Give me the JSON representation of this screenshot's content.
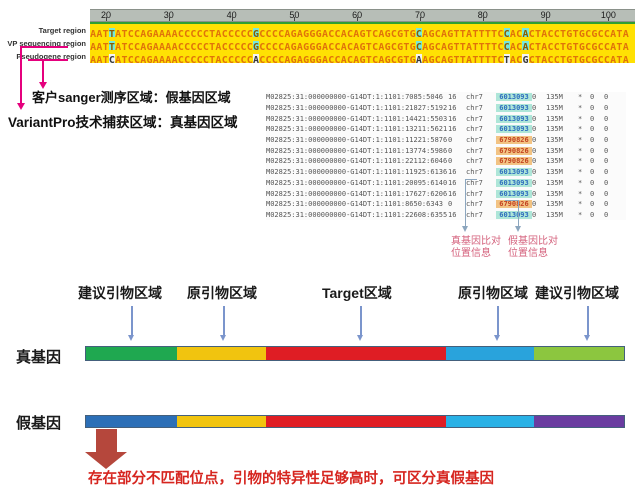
{
  "alignment_viewer": {
    "ruler_ticks": [
      20,
      30,
      40,
      50,
      60,
      70,
      80,
      90,
      100
    ],
    "rows": [
      {
        "label": "Target region",
        "kind": "reference",
        "seq": "AATTATCCAGAAAACCCCCTACCCCCGCCCCAGAGGGACCACAGTCAGCGTGCAGCAGTTATTTTCCACACTACCTGTGCGCCATA"
      },
      {
        "label": "VP sequencing region",
        "kind": "reference",
        "seq": "AATTATCCAGAAAACCCCCTACCCCCGCCCCAGAGGGACCACAGTCAGCGTGCAGCAGTTATTTTCCACACTACCTGTGCGCCATA"
      },
      {
        "label": "Pseudogene region",
        "kind": "pseudogene",
        "seq": "AATCATCCAGAAAACCCCCTACCCCCACCCCAGAGGGACCACAGTCAGCGTGAAGCAGTTATTTTCTACGCTACCTGTGCGCCATA"
      }
    ],
    "mismatch_indices": [
      3,
      26,
      52,
      66,
      69
    ],
    "colors": {
      "seq_bg": "#ffe103",
      "seq_text": "#e0730a",
      "highlight_bg": "#76e8dc",
      "mismatch_bg": "#f4f4f4",
      "ruler_bg": "#b7beb7",
      "green_strip": "#2f9e33"
    }
  },
  "annotations": {
    "sanger_line": "客户sanger测序区域：假基因区域",
    "variantpro_line": "VariantPro技术捕获区域：真基因区域",
    "arrow_color": "#e5007d"
  },
  "sam_table": {
    "rows": [
      {
        "qname": "M02825:31:000000000-G14DT:1:1101:7085:5046",
        "flag": "16",
        "rname": "chr7",
        "pos": "6013093",
        "mapq": "0",
        "cigar": "135M",
        "rnext": "*",
        "pnext": "0",
        "tlen": "0"
      },
      {
        "qname": "M02825:31:000000000-G14DT:1:1101:21827:5192",
        "flag": "16",
        "rname": "chr7",
        "pos": "6013093",
        "mapq": "0",
        "cigar": "135M",
        "rnext": "*",
        "pnext": "0",
        "tlen": "0"
      },
      {
        "qname": "M02825:31:000000000-G14DT:1:1101:14421:5503",
        "flag": "16",
        "rname": "chr7",
        "pos": "6013093",
        "mapq": "0",
        "cigar": "135M",
        "rnext": "*",
        "pnext": "0",
        "tlen": "0"
      },
      {
        "qname": "M02825:31:000000000-G14DT:1:1101:13211:5621",
        "flag": "16",
        "rname": "chr7",
        "pos": "6013093",
        "mapq": "0",
        "cigar": "135M",
        "rnext": "*",
        "pnext": "0",
        "tlen": "0"
      },
      {
        "qname": "M02825:31:000000000-G14DT:1:1101:11221:5876",
        "flag": "0",
        "rname": "chr7",
        "pos": "6790826",
        "mapq": "0",
        "cigar": "135M",
        "rnext": "*",
        "pnext": "0",
        "tlen": "0"
      },
      {
        "qname": "M02825:31:000000000-G14DT:1:1101:13774:5986",
        "flag": "0",
        "rname": "chr7",
        "pos": "6790826",
        "mapq": "0",
        "cigar": "135M",
        "rnext": "*",
        "pnext": "0",
        "tlen": "0"
      },
      {
        "qname": "M02825:31:000000000-G14DT:1:1101:22112:6046",
        "flag": "0",
        "rname": "chr7",
        "pos": "6790826",
        "mapq": "0",
        "cigar": "135M",
        "rnext": "*",
        "pnext": "0",
        "tlen": "0"
      },
      {
        "qname": "M02825:31:000000000-G14DT:1:1101:11925:6136",
        "flag": "16",
        "rname": "chr7",
        "pos": "6013093",
        "mapq": "0",
        "cigar": "135M",
        "rnext": "*",
        "pnext": "0",
        "tlen": "0"
      },
      {
        "qname": "M02825:31:000000000-G14DT:1:1101:20095:6140",
        "flag": "16",
        "rname": "chr7",
        "pos": "6013093",
        "mapq": "0",
        "cigar": "135M",
        "rnext": "*",
        "pnext": "0",
        "tlen": "0"
      },
      {
        "qname": "M02825:31:000000000-G14DT:1:1101:17627:6206",
        "flag": "16",
        "rname": "chr7",
        "pos": "6013093",
        "mapq": "0",
        "cigar": "135M",
        "rnext": "*",
        "pnext": "0",
        "tlen": "0"
      },
      {
        "qname": "M02825:31:000000000-G14DT:1:1101:8650:6343",
        "flag": "0",
        "rname": "chr7",
        "pos": "6790826",
        "mapq": "0",
        "cigar": "135M",
        "rnext": "*",
        "pnext": "0",
        "tlen": "0"
      },
      {
        "qname": "M02825:31:000000000-G14DT:1:1101:22608:6355",
        "flag": "16",
        "rname": "chr7",
        "pos": "6013093",
        "mapq": "0",
        "cigar": "135M",
        "rnext": "*",
        "pnext": "0",
        "tlen": "0"
      }
    ],
    "pos_styles": {
      "6013093": {
        "bg": "#aee6d8",
        "text": "#2f6fbf"
      },
      "6790826": {
        "bg": "#f2c383",
        "text": "#c24220"
      }
    },
    "callout_true": "真基因比对\n位置信息",
    "callout_pseudo": "假基因比对\n位置信息"
  },
  "gene_diagram": {
    "region_labels": [
      "建议引物区域",
      "原引物区域",
      "Target区域",
      "原引物区域",
      "建议引物区域"
    ],
    "true_gene": {
      "label": "真基因",
      "segments": [
        {
          "name": "suggested-primer-left",
          "color": "#1fa850"
        },
        {
          "name": "original-primer-left",
          "color": "#f1c40f"
        },
        {
          "name": "target",
          "color": "#df1d24"
        },
        {
          "name": "original-primer-right",
          "color": "#29a3dc"
        },
        {
          "name": "suggested-primer-right",
          "color": "#8cc63f"
        }
      ]
    },
    "pseudo_gene": {
      "label": "假基因",
      "segments": [
        {
          "name": "suggested-primer-left",
          "color": "#2c6fb7"
        },
        {
          "name": "original-primer-left",
          "color": "#f1c40f"
        },
        {
          "name": "target",
          "color": "#df1d24"
        },
        {
          "name": "original-primer-right",
          "color": "#29b1e6"
        },
        {
          "name": "suggested-primer-right",
          "color": "#6a3ca0"
        }
      ]
    },
    "conclusion": "存在部分不匹配位点，引物的特异性足够高时，可区分真假基因"
  }
}
